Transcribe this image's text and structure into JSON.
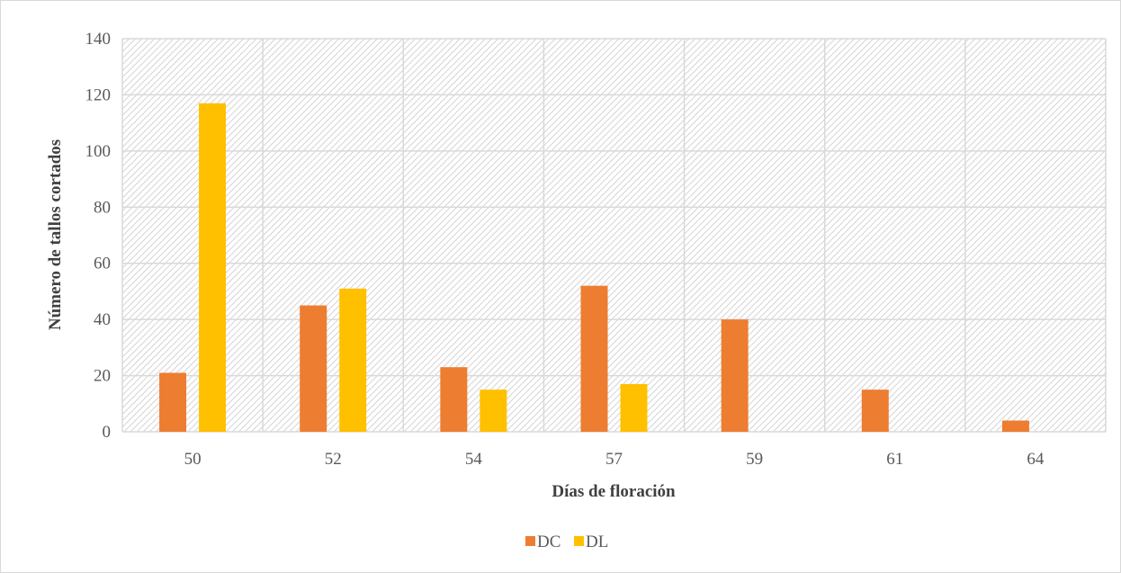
{
  "chart_data": {
    "type": "bar",
    "title": "",
    "xlabel": "Días de floración",
    "ylabel": "Número de tallos cortados",
    "categories": [
      "50",
      "52",
      "54",
      "57",
      "59",
      "61",
      "64"
    ],
    "series": [
      {
        "name": "DC",
        "color": "#ED7D31",
        "values": [
          21,
          45,
          23,
          52,
          40,
          15,
          4
        ]
      },
      {
        "name": "DL",
        "color": "#FFC000",
        "values": [
          117,
          51,
          15,
          17,
          0,
          0,
          0
        ]
      }
    ],
    "ylim": [
      0,
      140
    ],
    "yticks": [
      0,
      20,
      40,
      60,
      80,
      100,
      120,
      140
    ],
    "grid": true,
    "legend": "bottom-center"
  }
}
